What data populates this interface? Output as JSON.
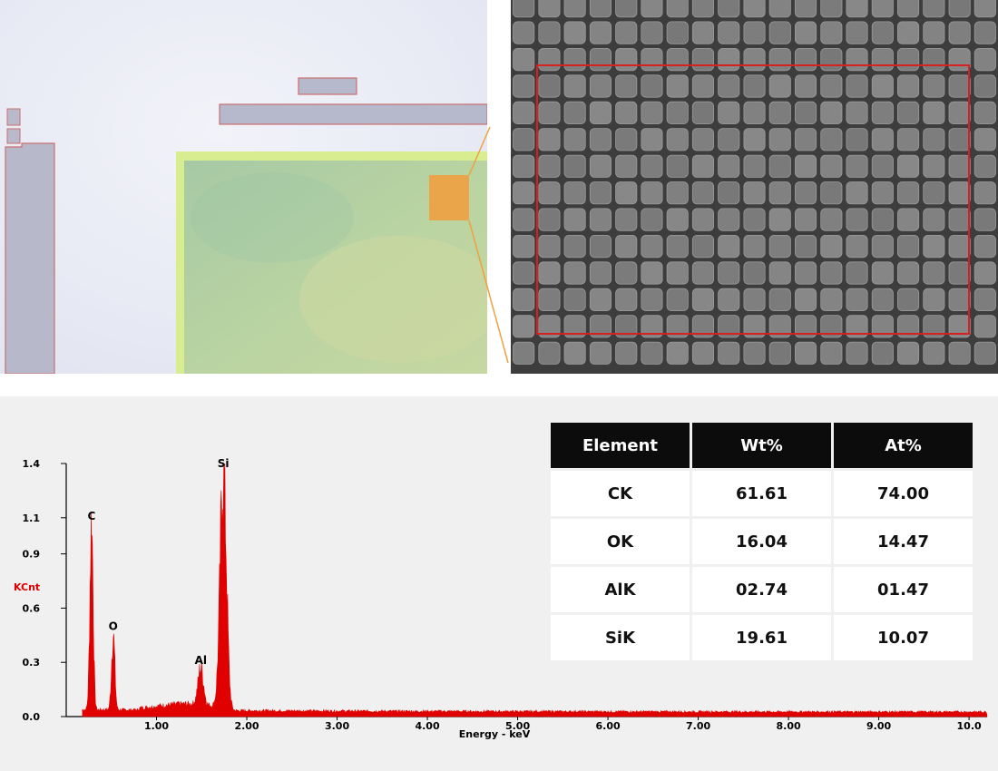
{
  "colors": {
    "spectrum": "#e00000",
    "highlight_box": "#d91f1f",
    "zoom_square": "#f0a040",
    "table_header_bg": "#0c0c0c",
    "edx_background": "#f0f0f0"
  },
  "optical_panel": {
    "kind": "optical-microscope-image"
  },
  "sem_panel": {
    "kind": "sem-micrograph",
    "grid_columns": 19,
    "grid_rows": 14
  },
  "table": {
    "headers": [
      "Element",
      "Wt%",
      "At%"
    ],
    "rows": [
      [
        "CK",
        "61.61",
        "74.00"
      ],
      [
        "OK",
        "16.04",
        "14.47"
      ],
      [
        "AlK",
        "02.74",
        "01.47"
      ],
      [
        "SiK",
        "19.61",
        "10.07"
      ]
    ]
  },
  "chart_data": {
    "type": "area",
    "xlabel": "Energy - keV",
    "ylabel": "KCnt",
    "xlim": [
      0,
      10.2
    ],
    "ylim": [
      0,
      1.4
    ],
    "x_ticks": [
      "1.00",
      "2.00",
      "3.00",
      "4.00",
      "5.00",
      "6.00",
      "7.00",
      "8.00",
      "9.00",
      "10.0"
    ],
    "y_ticks": [
      "0.0",
      "0.3",
      "0.6",
      "0.9",
      "1.1",
      "1.4"
    ],
    "peaks": [
      {
        "label": "C",
        "energy_keV": 0.28,
        "kcnt": 1.07
      },
      {
        "label": "O",
        "energy_keV": 0.52,
        "kcnt": 0.46
      },
      {
        "label": "Al",
        "energy_keV": 1.49,
        "kcnt": 0.27
      },
      {
        "label": "Si",
        "energy_keV": 1.74,
        "kcnt": 1.36
      }
    ]
  }
}
